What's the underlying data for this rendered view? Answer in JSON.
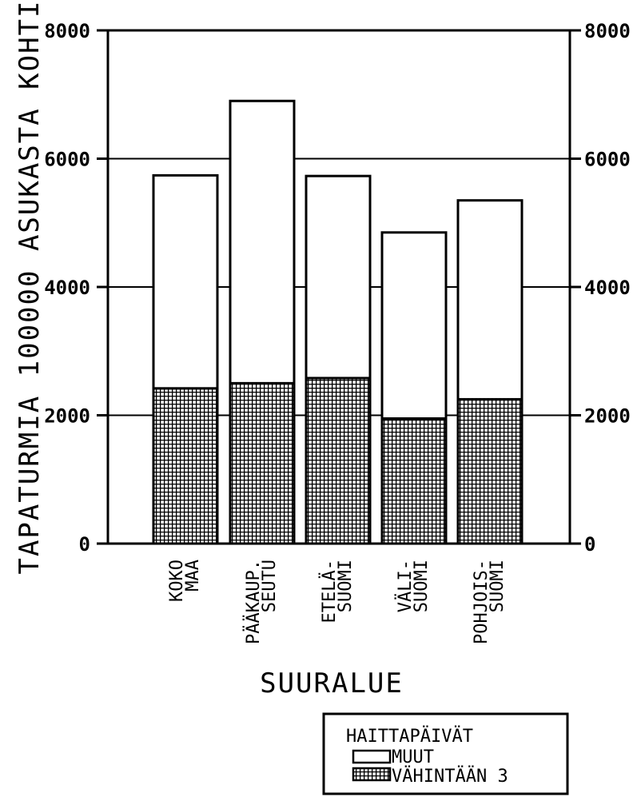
{
  "chart_data": {
    "type": "bar",
    "stacked": true,
    "categories": [
      [
        "KOKO",
        "MAA"
      ],
      [
        "PÄÄKAUP.",
        "SEUTU"
      ],
      [
        "ETELÄ-",
        "SUOMI"
      ],
      [
        "VÄLI-",
        "SUOMI"
      ],
      [
        "POHJOIS-",
        "SUOMI"
      ]
    ],
    "series": [
      {
        "name": "VÄHINTÄÄN 3",
        "values": [
          2420,
          2500,
          2580,
          1950,
          2250
        ],
        "fill": "crosshatch"
      },
      {
        "name": "MUUT",
        "values": [
          3320,
          4400,
          3150,
          2900,
          3100
        ],
        "fill": "white"
      }
    ],
    "title": "",
    "xlabel": "SUURALUE",
    "ylabel": "TAPATURMIA 100000 ASUKASTA KOHTI",
    "ylim": [
      0,
      8000
    ],
    "yticks": [
      "0",
      "2000",
      "4000",
      "6000",
      "8000"
    ],
    "secondary_yaxis": true,
    "grid": "horizontal",
    "legend": {
      "title": "HAITTAPÄIVÄT",
      "placement": "bottom-right"
    }
  },
  "colors": {
    "ink": "#000000",
    "background": "#ffffff"
  }
}
